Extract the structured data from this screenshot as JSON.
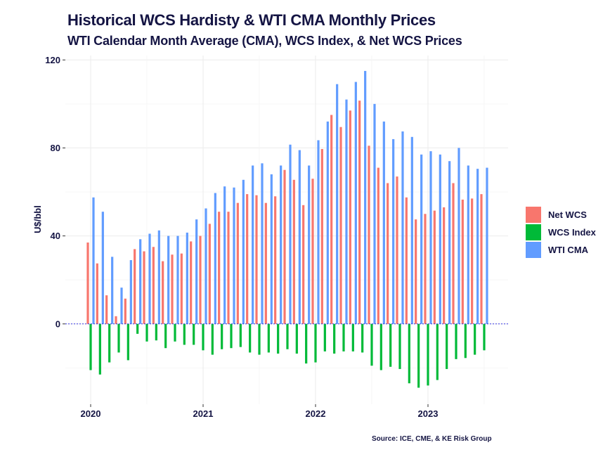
{
  "chart_data": {
    "type": "bar",
    "title": "Historical WCS Hardisty & WTI CMA Monthly Prices",
    "subtitle": "WTI Calendar Month Average (CMA), WCS Index, & Net WCS Prices",
    "xlabel": "",
    "ylabel": "U$/bbl",
    "ylim": [
      -36.5,
      122
    ],
    "y_ticks": [
      0,
      40,
      80,
      120
    ],
    "y_tick_labels": [
      "0",
      "40",
      "80",
      "120"
    ],
    "x_ticks": [
      "2020",
      "2021",
      "2022",
      "2023"
    ],
    "grid": true,
    "zero_line": "dashed",
    "legend_position": "right",
    "source": "Source: ICE, CME, & KE Risk Group",
    "categories": [
      "2020-01",
      "2020-02",
      "2020-03",
      "2020-04",
      "2020-05",
      "2020-06",
      "2020-07",
      "2020-08",
      "2020-09",
      "2020-10",
      "2020-11",
      "2020-12",
      "2021-01",
      "2021-02",
      "2021-03",
      "2021-04",
      "2021-05",
      "2021-06",
      "2021-07",
      "2021-08",
      "2021-09",
      "2021-10",
      "2021-11",
      "2021-12",
      "2022-01",
      "2022-02",
      "2022-03",
      "2022-04",
      "2022-05",
      "2022-06",
      "2022-07",
      "2022-08",
      "2022-09",
      "2022-10",
      "2022-11",
      "2022-12",
      "2023-01",
      "2023-02",
      "2023-03",
      "2023-04",
      "2023-05",
      "2023-06",
      "2023-07"
    ],
    "series": [
      {
        "name": "Net WCS",
        "color": "#f8766d",
        "values": [
          37,
          27.5,
          13,
          3.5,
          11.5,
          34,
          33,
          35,
          28.5,
          31.5,
          32,
          37.5,
          40,
          45.5,
          51,
          51,
          55,
          59,
          58.5,
          55,
          58,
          70,
          65.5,
          54,
          66,
          79.5,
          95,
          89.5,
          97,
          101.5,
          81,
          71,
          64,
          67,
          57.5,
          47.5,
          50,
          51.5,
          53,
          64,
          56.5,
          57,
          59
        ]
      },
      {
        "name": "WCS Index",
        "color": "#00ba38",
        "values": [
          -21,
          -23,
          -17.5,
          -13,
          -16.5,
          -4.5,
          -8,
          -7.5,
          -11,
          -8,
          -9.5,
          -9.5,
          -12,
          -14,
          -11.5,
          -11,
          -10.5,
          -13,
          -14,
          -13,
          -13.5,
          -11.5,
          -13.5,
          -18,
          -17.5,
          -12.5,
          -13.5,
          -12.5,
          -12.5,
          -13,
          -19,
          -21,
          -19.5,
          -20.5,
          -27,
          -29,
          -28,
          -25.5,
          -20.5,
          -16,
          -15.5,
          -14,
          -12
        ]
      },
      {
        "name": "WTI CMA",
        "color": "#619cff",
        "values": [
          57.5,
          51,
          30.5,
          16.5,
          29,
          38.5,
          41,
          42.5,
          40,
          40,
          41.5,
          47.5,
          52.5,
          59.5,
          62.5,
          62,
          65.5,
          72,
          73,
          68,
          72,
          81.5,
          79,
          72,
          83.5,
          92,
          109,
          102,
          110,
          115,
          100,
          92,
          84,
          87.5,
          85,
          77,
          78.5,
          77,
          74,
          80,
          72,
          70.5,
          71
        ]
      }
    ]
  }
}
